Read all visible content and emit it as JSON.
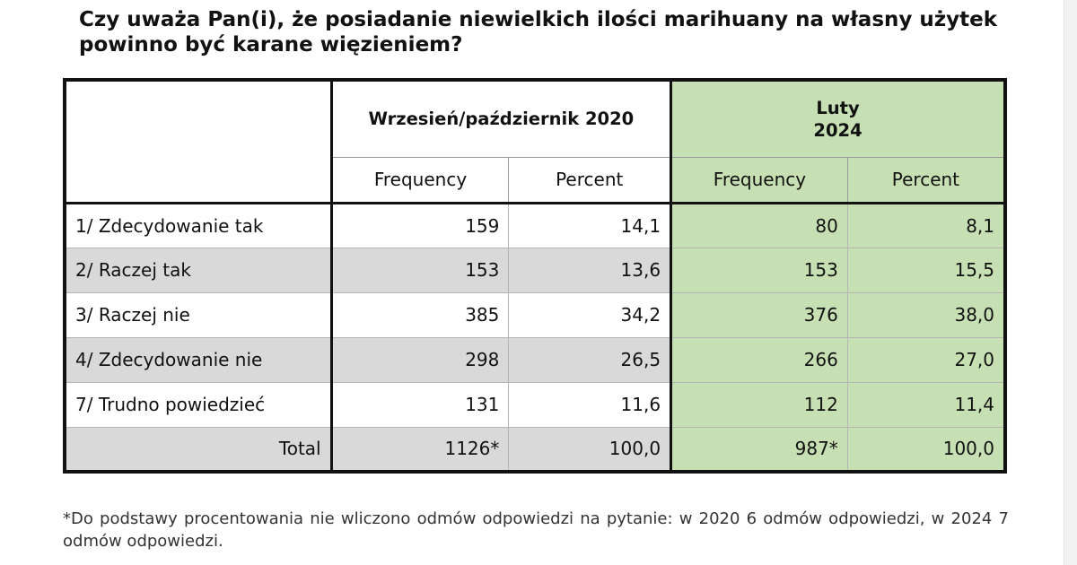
{
  "title": "Czy uważa Pan(i), że posiadanie niewielkich ilości marihuany na własny użytek powinno być karane więzieniem?",
  "columns": {
    "period1": "Wrzesień/październik 2020",
    "period2_line1": "Luty",
    "period2_line2": "2024",
    "frequency": "Frequency",
    "percent": "Percent"
  },
  "colors": {
    "highlight": "#c6e0b4",
    "shade": "#d9d9d9"
  },
  "rows": [
    {
      "label": "1/ Zdecydowanie tak",
      "f2020": "159",
      "p2020": "14,1",
      "f2024": "80",
      "p2024": "8,1"
    },
    {
      "label": "2/ Raczej tak",
      "f2020": "153",
      "p2020": "13,6",
      "f2024": "153",
      "p2024": "15,5"
    },
    {
      "label": "3/ Raczej nie",
      "f2020": "385",
      "p2020": "34,2",
      "f2024": "376",
      "p2024": "38,0"
    },
    {
      "label": "4/ Zdecydowanie nie",
      "f2020": "298",
      "p2020": "26,5",
      "f2024": "266",
      "p2024": "27,0"
    },
    {
      "label": "7/ Trudno powiedzieć",
      "f2020": "131",
      "p2020": "11,6",
      "f2024": "112",
      "p2024": "11,4"
    },
    {
      "label": "Total",
      "f2020": "1126*",
      "p2020": "100,0",
      "f2024": "987*",
      "p2024": "100,0"
    }
  ],
  "footnote": "*Do podstawy procentowania nie wliczono odmów odpowiedzi na pytanie: w 2020 6 odmów odpowiedzi, w 2024 7 odmów odpowiedzi."
}
